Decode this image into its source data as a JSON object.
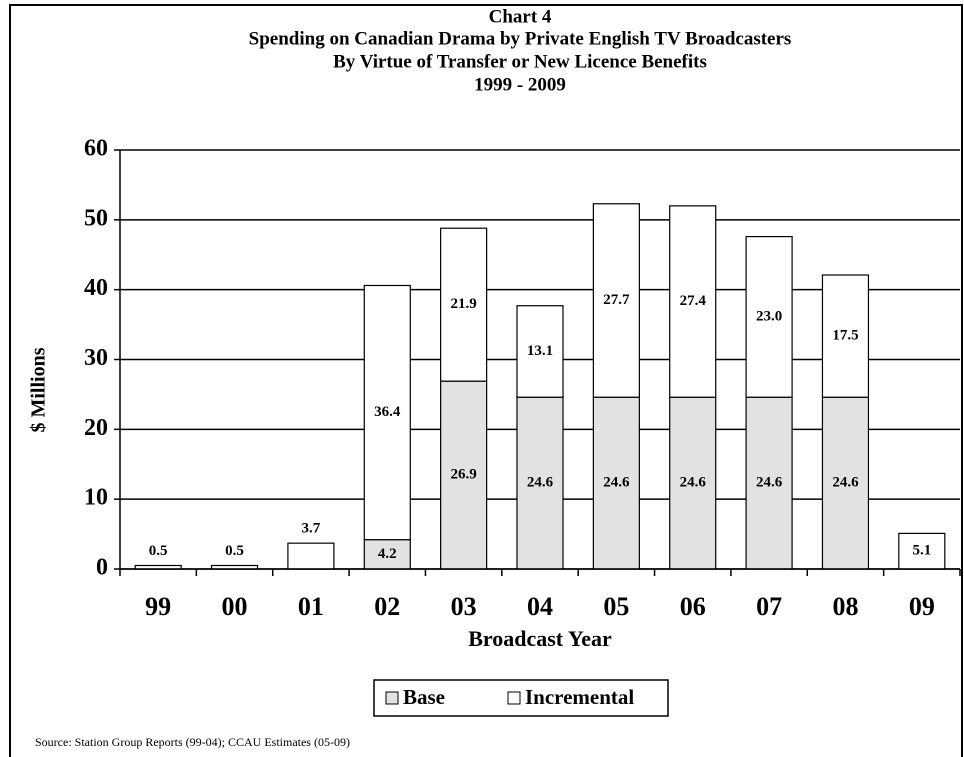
{
  "chart_data": {
    "type": "stacked_bar",
    "title": [
      "Chart 4",
      "Spending on Canadian Drama by Private English TV Broadcasters",
      "By Virtue of Transfer or New Licence Benefits",
      "1999 - 2009"
    ],
    "x_label": "Broadcast Year",
    "y_label": "$ Millions",
    "source": "Source:  Station Group Reports (99-04); CCAU Estimates (05-09)",
    "categories": [
      "99",
      "00",
      "01",
      "02",
      "03",
      "04",
      "05",
      "06",
      "07",
      "08",
      "09"
    ],
    "series": [
      {
        "name": "Base",
        "color": "#e2e2e2",
        "values": [
          null,
          null,
          null,
          4.2,
          26.9,
          24.6,
          24.6,
          24.6,
          24.6,
          24.6,
          null
        ]
      },
      {
        "name": "Incremental",
        "color": "#ffffff",
        "values": [
          0.5,
          0.5,
          3.7,
          36.4,
          21.9,
          13.1,
          27.7,
          27.4,
          23.0,
          17.5,
          5.1
        ],
        "value_labels": [
          "0.5",
          "0.5",
          "3.7",
          "36.4",
          "21.9",
          "13.1",
          "27.7",
          "27.4",
          "23.0",
          "17.5",
          "5.1"
        ]
      }
    ],
    "ylim": [
      0,
      60
    ],
    "yticks": [
      0,
      10,
      20,
      30,
      40,
      50,
      60
    ],
    "grid": true,
    "legend": "bottom"
  }
}
